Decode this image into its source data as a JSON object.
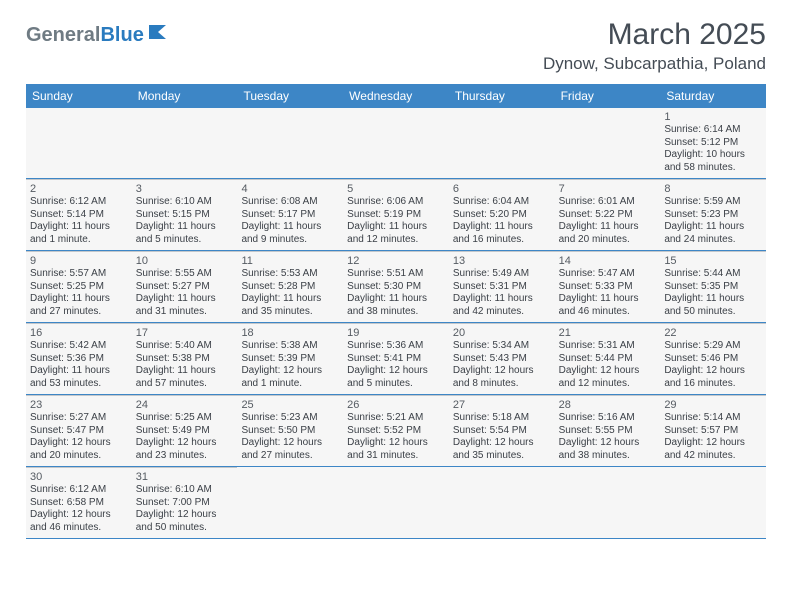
{
  "logo": {
    "gray": "General",
    "blue": "Blue"
  },
  "title": {
    "month": "March 2025",
    "location": "Dynow, Subcarpathia, Poland"
  },
  "colors": {
    "header_bg": "#3d86c6",
    "header_text": "#ffffff",
    "cell_bg": "#f6f6f6",
    "divider": "#3d86c6",
    "daynum": "#555b62",
    "body_text": "#3b4047"
  },
  "weekdays": [
    "Sunday",
    "Monday",
    "Tuesday",
    "Wednesday",
    "Thursday",
    "Friday",
    "Saturday"
  ],
  "weeks": [
    [
      null,
      null,
      null,
      null,
      null,
      null,
      {
        "n": "1",
        "sr": "Sunrise: 6:14 AM",
        "ss": "Sunset: 5:12 PM",
        "d1": "Daylight: 10 hours",
        "d2": "and 58 minutes."
      }
    ],
    [
      {
        "n": "2",
        "sr": "Sunrise: 6:12 AM",
        "ss": "Sunset: 5:14 PM",
        "d1": "Daylight: 11 hours",
        "d2": "and 1 minute."
      },
      {
        "n": "3",
        "sr": "Sunrise: 6:10 AM",
        "ss": "Sunset: 5:15 PM",
        "d1": "Daylight: 11 hours",
        "d2": "and 5 minutes."
      },
      {
        "n": "4",
        "sr": "Sunrise: 6:08 AM",
        "ss": "Sunset: 5:17 PM",
        "d1": "Daylight: 11 hours",
        "d2": "and 9 minutes."
      },
      {
        "n": "5",
        "sr": "Sunrise: 6:06 AM",
        "ss": "Sunset: 5:19 PM",
        "d1": "Daylight: 11 hours",
        "d2": "and 12 minutes."
      },
      {
        "n": "6",
        "sr": "Sunrise: 6:04 AM",
        "ss": "Sunset: 5:20 PM",
        "d1": "Daylight: 11 hours",
        "d2": "and 16 minutes."
      },
      {
        "n": "7",
        "sr": "Sunrise: 6:01 AM",
        "ss": "Sunset: 5:22 PM",
        "d1": "Daylight: 11 hours",
        "d2": "and 20 minutes."
      },
      {
        "n": "8",
        "sr": "Sunrise: 5:59 AM",
        "ss": "Sunset: 5:23 PM",
        "d1": "Daylight: 11 hours",
        "d2": "and 24 minutes."
      }
    ],
    [
      {
        "n": "9",
        "sr": "Sunrise: 5:57 AM",
        "ss": "Sunset: 5:25 PM",
        "d1": "Daylight: 11 hours",
        "d2": "and 27 minutes."
      },
      {
        "n": "10",
        "sr": "Sunrise: 5:55 AM",
        "ss": "Sunset: 5:27 PM",
        "d1": "Daylight: 11 hours",
        "d2": "and 31 minutes."
      },
      {
        "n": "11",
        "sr": "Sunrise: 5:53 AM",
        "ss": "Sunset: 5:28 PM",
        "d1": "Daylight: 11 hours",
        "d2": "and 35 minutes."
      },
      {
        "n": "12",
        "sr": "Sunrise: 5:51 AM",
        "ss": "Sunset: 5:30 PM",
        "d1": "Daylight: 11 hours",
        "d2": "and 38 minutes."
      },
      {
        "n": "13",
        "sr": "Sunrise: 5:49 AM",
        "ss": "Sunset: 5:31 PM",
        "d1": "Daylight: 11 hours",
        "d2": "and 42 minutes."
      },
      {
        "n": "14",
        "sr": "Sunrise: 5:47 AM",
        "ss": "Sunset: 5:33 PM",
        "d1": "Daylight: 11 hours",
        "d2": "and 46 minutes."
      },
      {
        "n": "15",
        "sr": "Sunrise: 5:44 AM",
        "ss": "Sunset: 5:35 PM",
        "d1": "Daylight: 11 hours",
        "d2": "and 50 minutes."
      }
    ],
    [
      {
        "n": "16",
        "sr": "Sunrise: 5:42 AM",
        "ss": "Sunset: 5:36 PM",
        "d1": "Daylight: 11 hours",
        "d2": "and 53 minutes."
      },
      {
        "n": "17",
        "sr": "Sunrise: 5:40 AM",
        "ss": "Sunset: 5:38 PM",
        "d1": "Daylight: 11 hours",
        "d2": "and 57 minutes."
      },
      {
        "n": "18",
        "sr": "Sunrise: 5:38 AM",
        "ss": "Sunset: 5:39 PM",
        "d1": "Daylight: 12 hours",
        "d2": "and 1 minute."
      },
      {
        "n": "19",
        "sr": "Sunrise: 5:36 AM",
        "ss": "Sunset: 5:41 PM",
        "d1": "Daylight: 12 hours",
        "d2": "and 5 minutes."
      },
      {
        "n": "20",
        "sr": "Sunrise: 5:34 AM",
        "ss": "Sunset: 5:43 PM",
        "d1": "Daylight: 12 hours",
        "d2": "and 8 minutes."
      },
      {
        "n": "21",
        "sr": "Sunrise: 5:31 AM",
        "ss": "Sunset: 5:44 PM",
        "d1": "Daylight: 12 hours",
        "d2": "and 12 minutes."
      },
      {
        "n": "22",
        "sr": "Sunrise: 5:29 AM",
        "ss": "Sunset: 5:46 PM",
        "d1": "Daylight: 12 hours",
        "d2": "and 16 minutes."
      }
    ],
    [
      {
        "n": "23",
        "sr": "Sunrise: 5:27 AM",
        "ss": "Sunset: 5:47 PM",
        "d1": "Daylight: 12 hours",
        "d2": "and 20 minutes."
      },
      {
        "n": "24",
        "sr": "Sunrise: 5:25 AM",
        "ss": "Sunset: 5:49 PM",
        "d1": "Daylight: 12 hours",
        "d2": "and 23 minutes."
      },
      {
        "n": "25",
        "sr": "Sunrise: 5:23 AM",
        "ss": "Sunset: 5:50 PM",
        "d1": "Daylight: 12 hours",
        "d2": "and 27 minutes."
      },
      {
        "n": "26",
        "sr": "Sunrise: 5:21 AM",
        "ss": "Sunset: 5:52 PM",
        "d1": "Daylight: 12 hours",
        "d2": "and 31 minutes."
      },
      {
        "n": "27",
        "sr": "Sunrise: 5:18 AM",
        "ss": "Sunset: 5:54 PM",
        "d1": "Daylight: 12 hours",
        "d2": "and 35 minutes."
      },
      {
        "n": "28",
        "sr": "Sunrise: 5:16 AM",
        "ss": "Sunset: 5:55 PM",
        "d1": "Daylight: 12 hours",
        "d2": "and 38 minutes."
      },
      {
        "n": "29",
        "sr": "Sunrise: 5:14 AM",
        "ss": "Sunset: 5:57 PM",
        "d1": "Daylight: 12 hours",
        "d2": "and 42 minutes."
      }
    ],
    [
      {
        "n": "30",
        "sr": "Sunrise: 6:12 AM",
        "ss": "Sunset: 6:58 PM",
        "d1": "Daylight: 12 hours",
        "d2": "and 46 minutes."
      },
      {
        "n": "31",
        "sr": "Sunrise: 6:10 AM",
        "ss": "Sunset: 7:00 PM",
        "d1": "Daylight: 12 hours",
        "d2": "and 50 minutes."
      },
      null,
      null,
      null,
      null,
      null
    ]
  ]
}
